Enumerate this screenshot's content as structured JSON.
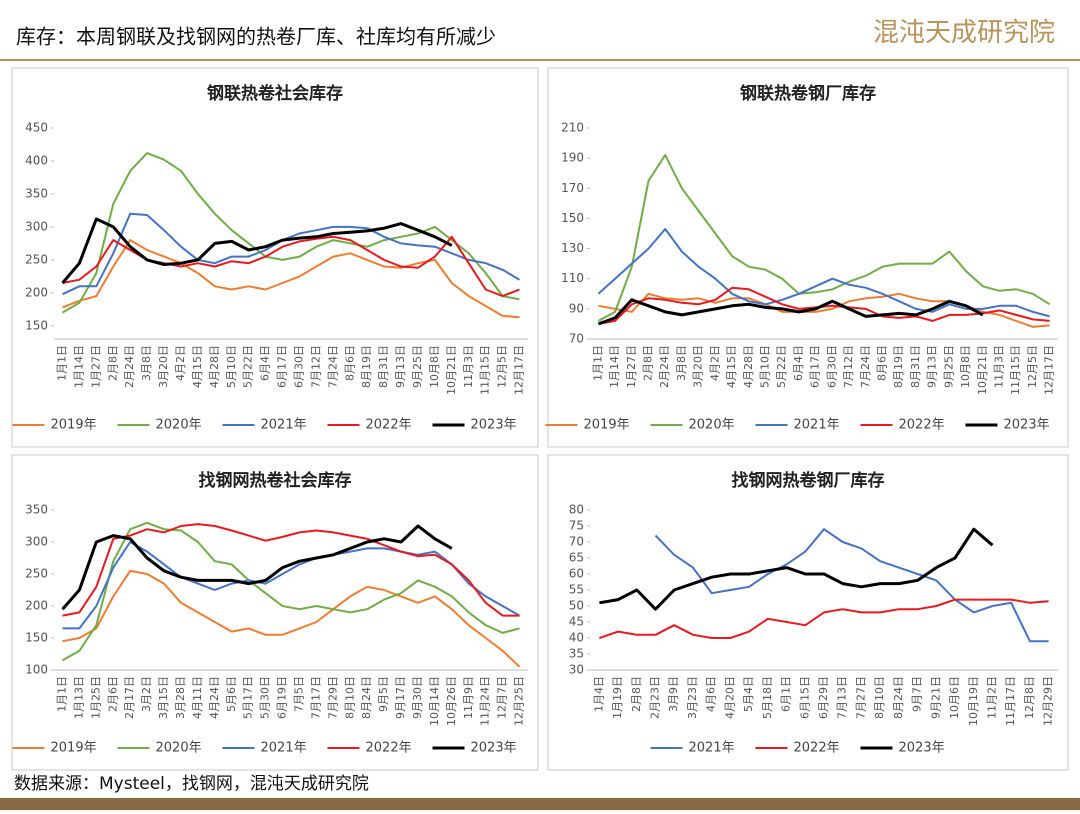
{
  "header": {
    "title": "库存：本周钢联及找钢网的热卷厂库、社库均有所减少",
    "logo": "混沌天成研究院"
  },
  "footer": {
    "source": "数据来源：Mysteel，找钢网，混沌天成研究院"
  },
  "chart_data": [
    {
      "type": "line",
      "title": "钢联热卷社会库存",
      "categories": [
        "1月1日",
        "1月14日",
        "1月27日",
        "2月8日",
        "2月24日",
        "3月8日",
        "3月20日",
        "4月2日",
        "4月15日",
        "4月28日",
        "5月10日",
        "5月22日",
        "6月4日",
        "6月17日",
        "6月30日",
        "7月12日",
        "7月24日",
        "8月6日",
        "8月19日",
        "8月31日",
        "9月13日",
        "9月25日",
        "10月8日",
        "10月21日",
        "11月3日",
        "11月15日",
        "12月5日",
        "12月17日"
      ],
      "ylim": [
        130,
        450
      ],
      "yticks": [
        150,
        200,
        250,
        300,
        350,
        400,
        450
      ],
      "series": [
        {
          "name": "2019年",
          "color": "#ed7d31",
          "values": [
            178,
            188,
            195,
            240,
            280,
            265,
            255,
            245,
            230,
            210,
            205,
            210,
            205,
            215,
            225,
            240,
            255,
            260,
            250,
            240,
            238,
            245,
            250,
            215,
            195,
            180,
            165,
            163
          ]
        },
        {
          "name": "2020年",
          "color": "#70ad47",
          "values": [
            170,
            185,
            230,
            335,
            385,
            412,
            402,
            385,
            350,
            320,
            295,
            275,
            255,
            250,
            255,
            270,
            280,
            275,
            270,
            280,
            285,
            290,
            300,
            280,
            260,
            230,
            195,
            190
          ]
        },
        {
          "name": "2021年",
          "color": "#4472c4",
          "values": [
            198,
            210,
            210,
            260,
            320,
            318,
            295,
            270,
            250,
            245,
            255,
            255,
            265,
            280,
            290,
            295,
            300,
            300,
            298,
            285,
            275,
            272,
            270,
            260,
            250,
            245,
            235,
            220
          ]
        },
        {
          "name": "2022年",
          "color": "#e8191f",
          "values": [
            215,
            220,
            240,
            280,
            265,
            250,
            245,
            240,
            245,
            240,
            248,
            245,
            255,
            270,
            278,
            282,
            285,
            280,
            265,
            250,
            240,
            238,
            255,
            285,
            245,
            205,
            195,
            205
          ]
        },
        {
          "name": "2023年",
          "color": "#000000",
          "values": [
            215,
            245,
            312,
            300,
            270,
            250,
            243,
            245,
            250,
            275,
            278,
            265,
            270,
            280,
            283,
            285,
            290,
            292,
            294,
            298,
            305,
            295,
            285,
            272,
            null,
            null,
            null,
            null
          ]
        }
      ]
    },
    {
      "type": "line",
      "title": "钢联热卷钢厂库存",
      "categories": [
        "1月1日",
        "1月14日",
        "1月27日",
        "2月8日",
        "2月24日",
        "3月8日",
        "3月20日",
        "4月2日",
        "4月15日",
        "4月28日",
        "5月10日",
        "5月22日",
        "6月4日",
        "6月17日",
        "6月30日",
        "7月12日",
        "7月24日",
        "8月6日",
        "8月19日",
        "8月31日",
        "9月13日",
        "9月25日",
        "10月8日",
        "10月21日",
        "11月3日",
        "11月15日",
        "12月5日",
        "12月17日"
      ],
      "ylim": [
        70,
        210
      ],
      "yticks": [
        70,
        90,
        110,
        130,
        150,
        170,
        190,
        210
      ],
      "series": [
        {
          "name": "2019年",
          "color": "#ed7d31",
          "values": [
            92,
            90,
            88,
            100,
            97,
            96,
            97,
            94,
            97,
            97,
            93,
            88,
            88,
            88,
            90,
            95,
            97,
            98,
            100,
            97,
            95,
            95,
            92,
            88,
            86,
            82,
            78,
            79
          ]
        },
        {
          "name": "2020年",
          "color": "#70ad47",
          "values": [
            82,
            88,
            118,
            175,
            192,
            170,
            155,
            140,
            125,
            118,
            116,
            110,
            100,
            101,
            103,
            108,
            112,
            118,
            120,
            120,
            120,
            128,
            115,
            105,
            102,
            103,
            100,
            93
          ]
        },
        {
          "name": "2021年",
          "color": "#4472c4",
          "values": [
            100,
            110,
            120,
            130,
            143,
            128,
            118,
            110,
            100,
            95,
            93,
            96,
            100,
            105,
            110,
            106,
            104,
            100,
            95,
            90,
            88,
            93,
            90,
            90,
            92,
            92,
            88,
            85
          ]
        },
        {
          "name": "2022年",
          "color": "#e8191f",
          "values": [
            80,
            82,
            93,
            97,
            96,
            94,
            93,
            96,
            104,
            103,
            98,
            93,
            90,
            91,
            92,
            91,
            90,
            85,
            84,
            85,
            82,
            86,
            86,
            87,
            89,
            86,
            83,
            82
          ]
        },
        {
          "name": "2023年",
          "color": "#000000",
          "values": [
            80,
            84,
            96,
            92,
            88,
            86,
            88,
            90,
            92,
            93,
            91,
            90,
            88,
            90,
            95,
            90,
            85,
            86,
            87,
            86,
            90,
            95,
            92,
            86,
            null,
            null,
            null,
            null
          ]
        }
      ]
    },
    {
      "type": "line",
      "title": "找钢网热卷社会库存",
      "categories": [
        "1月1日",
        "1月13日",
        "1月25日",
        "2月6日",
        "2月17日",
        "3月2日",
        "3月15日",
        "3月28日",
        "4月11日",
        "4月24日",
        "5月6日",
        "5月17日",
        "5月30日",
        "6月19日",
        "7月5日",
        "7月17日",
        "7月29日",
        "8月10日",
        "8月24日",
        "9月5日",
        "9月17日",
        "9月30日",
        "10月14日",
        "10月26日",
        "11月9日",
        "11月24日",
        "12月7日",
        "12月25日"
      ],
      "ylim": [
        100,
        350
      ],
      "yticks": [
        100,
        150,
        200,
        250,
        300,
        350
      ],
      "series": [
        {
          "name": "2019年",
          "color": "#ed7d31",
          "values": [
            145,
            150,
            165,
            215,
            255,
            250,
            235,
            205,
            190,
            175,
            160,
            165,
            155,
            155,
            165,
            175,
            195,
            215,
            230,
            225,
            215,
            205,
            215,
            195,
            170,
            150,
            130,
            105
          ]
        },
        {
          "name": "2020年",
          "color": "#70ad47",
          "values": [
            115,
            130,
            170,
            270,
            320,
            330,
            320,
            318,
            300,
            270,
            265,
            240,
            220,
            200,
            195,
            200,
            195,
            190,
            195,
            210,
            220,
            240,
            230,
            215,
            190,
            170,
            158,
            165
          ]
        },
        {
          "name": "2021年",
          "color": "#4472c4",
          "values": [
            165,
            165,
            200,
            260,
            300,
            285,
            265,
            245,
            235,
            225,
            235,
            240,
            235,
            250,
            265,
            275,
            280,
            285,
            290,
            290,
            285,
            280,
            285,
            265,
            235,
            215,
            200,
            185
          ]
        },
        {
          "name": "2022年",
          "color": "#e8191f",
          "values": [
            185,
            190,
            230,
            305,
            310,
            320,
            315,
            325,
            328,
            325,
            318,
            310,
            302,
            308,
            315,
            318,
            315,
            310,
            305,
            295,
            285,
            278,
            280,
            265,
            240,
            205,
            185,
            185
          ]
        },
        {
          "name": "2023年",
          "color": "#000000",
          "values": [
            195,
            225,
            300,
            310,
            305,
            275,
            255,
            245,
            240,
            240,
            240,
            235,
            240,
            260,
            270,
            275,
            280,
            290,
            300,
            305,
            300,
            325,
            305,
            290,
            null,
            null,
            null,
            null
          ]
        }
      ]
    },
    {
      "type": "line",
      "title": "找钢网热卷钢厂库存",
      "categories": [
        "1月4日",
        "1月19日",
        "2月8日",
        "2月23日",
        "3月9日",
        "3月23日",
        "4月6日",
        "4月20日",
        "5月4日",
        "5月18日",
        "6月1日",
        "6月15日",
        "6月29日",
        "7月13日",
        "7月27日",
        "8月10日",
        "8月24日",
        "9月7日",
        "9月21日",
        "10月6日",
        "10月19日",
        "11月2日",
        "11月17日",
        "12月8日",
        "12月29日"
      ],
      "ylim": [
        30,
        80
      ],
      "yticks": [
        30,
        35,
        40,
        45,
        50,
        55,
        60,
        65,
        70,
        75,
        80
      ],
      "series": [
        {
          "name": "2021年",
          "color": "#4472c4",
          "values": [
            null,
            null,
            null,
            72,
            66,
            62,
            54,
            55,
            56,
            60,
            63,
            67,
            74,
            70,
            68,
            64,
            62,
            60,
            58,
            52,
            48,
            50,
            51,
            39,
            39
          ]
        },
        {
          "name": "2022年",
          "color": "#e8191f",
          "values": [
            40,
            42,
            41,
            41,
            44,
            41,
            40,
            40,
            42,
            46,
            45,
            44,
            48,
            49,
            48,
            48,
            49,
            49,
            50,
            52,
            52,
            52,
            52,
            51,
            51.5
          ]
        },
        {
          "name": "2023年",
          "color": "#000000",
          "values": [
            51,
            52,
            55,
            49,
            55,
            57,
            59,
            60,
            60,
            61,
            62,
            60,
            60,
            57,
            56,
            57,
            57,
            58,
            62,
            65,
            74,
            69,
            null,
            null,
            null
          ]
        }
      ]
    }
  ]
}
